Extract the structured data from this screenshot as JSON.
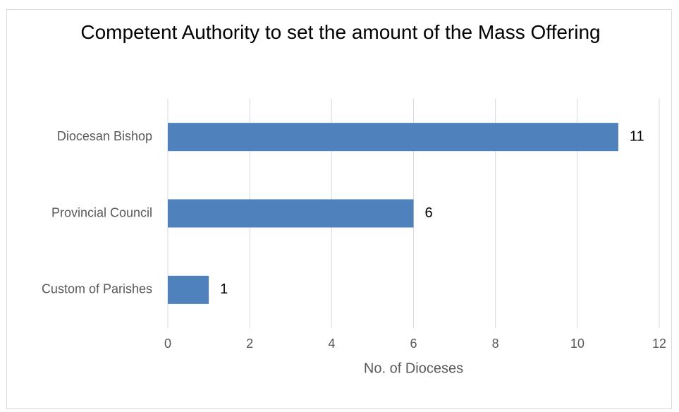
{
  "chart_data": {
    "type": "bar",
    "orientation": "horizontal",
    "title": "Competent Authority to set the amount of the Mass Offering",
    "categories": [
      "Diocesan Bishop",
      "Provincial Council",
      "Custom of Parishes"
    ],
    "values": [
      11,
      6,
      1
    ],
    "xlabel": "No. of Dioceses",
    "ylabel": "",
    "xlim": [
      0,
      12
    ],
    "xticks": [
      0,
      2,
      4,
      6,
      8,
      10,
      12
    ],
    "grid": true,
    "legend": "none",
    "data_labels": true,
    "bar_color": "#4f81bd",
    "grid_color": "#d9d9d9"
  }
}
